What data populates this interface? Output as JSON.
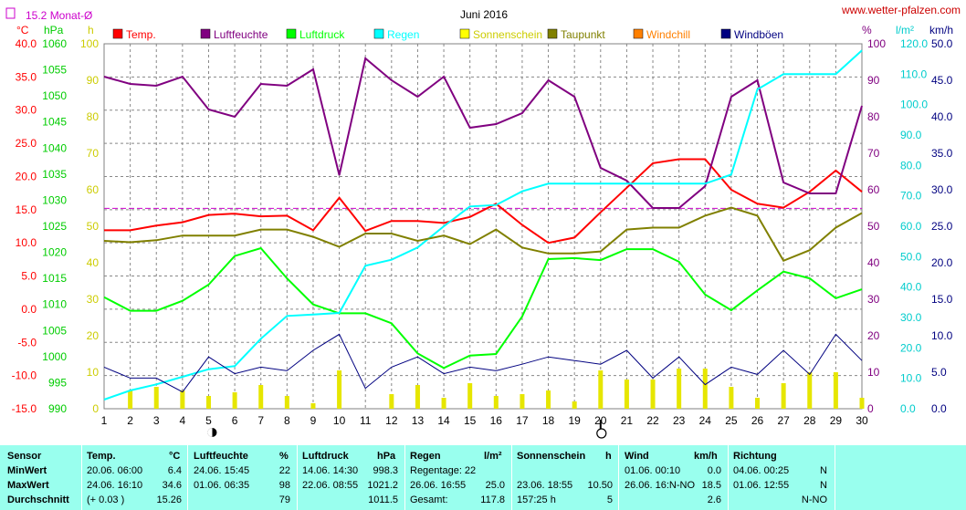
{
  "header": {
    "title": "Juni 2016",
    "website": "www.wetter-pfalzen.com",
    "monthly_avg": "15.2 Monat-Ø",
    "unit_celsius": "°C",
    "unit_hpa": "hPa",
    "unit_h": "h",
    "unit_pct": "%",
    "unit_lm2": "l/m²",
    "unit_kmh": "km/h"
  },
  "legend": [
    {
      "label": "Temp.",
      "color": "#ff0000"
    },
    {
      "label": "Luftfeuchte",
      "color": "#800080"
    },
    {
      "label": "Luftdruck",
      "color": "#00ff00"
    },
    {
      "label": "Regen",
      "color": "#00ffff"
    },
    {
      "label": "Sonnenschein",
      "color": "#ffff00"
    },
    {
      "label": "Taupunkt",
      "color": "#808000"
    },
    {
      "label": "Windchill",
      "color": "#ff8000"
    },
    {
      "label": "Windböen",
      "color": "#000080"
    }
  ],
  "chart_data": {
    "type": "line",
    "title": "Juni 2016",
    "x": [
      1,
      2,
      3,
      4,
      5,
      6,
      7,
      8,
      9,
      10,
      11,
      12,
      13,
      14,
      15,
      16,
      17,
      18,
      19,
      20,
      21,
      22,
      23,
      24,
      25,
      26,
      27,
      28,
      29,
      30
    ],
    "x_ticks": [
      "1",
      "2",
      "3",
      "4",
      "5",
      "6",
      "7",
      "8",
      "9",
      "10",
      "11",
      "12",
      "13",
      "14",
      "15",
      "16",
      "17",
      "18",
      "19",
      "20",
      "21",
      "22",
      "23",
      "24",
      "25",
      "26",
      "27",
      "28",
      "29",
      "30"
    ],
    "axes": {
      "temp_c": {
        "range": [
          -15,
          40
        ],
        "ticks": [
          "40.0",
          "35.0",
          "30.0",
          "25.0",
          "20.0",
          "15.0",
          "10.0",
          "5.0",
          "0.0",
          "-5.0",
          "-10.0",
          "-15.0"
        ]
      },
      "pressure_hpa": {
        "range": [
          990,
          1060
        ],
        "ticks": [
          "1060",
          "1055",
          "1050",
          "1045",
          "1040",
          "1035",
          "1030",
          "1025",
          "1020",
          "1015",
          "1010",
          "1005",
          "1000",
          "995",
          "990"
        ]
      },
      "sunshine_h": {
        "range": [
          0,
          100
        ],
        "ticks": [
          "100",
          "90",
          "80",
          "70",
          "60",
          "50",
          "40",
          "30",
          "20",
          "10",
          "0"
        ]
      },
      "humidity_pct": {
        "range": [
          0,
          100
        ],
        "ticks": [
          "100",
          "90",
          "80",
          "70",
          "60",
          "50",
          "40",
          "30",
          "20",
          "10",
          "0"
        ]
      },
      "rain_lm2": {
        "range": [
          0,
          120
        ],
        "ticks": [
          "120.0",
          "110.0",
          "100.0",
          "90.0",
          "80.0",
          "70.0",
          "60.0",
          "50.0",
          "40.0",
          "30.0",
          "20.0",
          "10.0",
          "0.0"
        ]
      },
      "wind_kmh": {
        "range": [
          0,
          50
        ],
        "ticks": [
          "50.0",
          "45.0",
          "40.0",
          "35.0",
          "30.0",
          "25.0",
          "20.0",
          "15.0",
          "10.0",
          "5.0",
          "0.0"
        ]
      }
    },
    "monthly_avg_temp": 15.2,
    "series": [
      {
        "name": "Temp.",
        "axis": "temp_c",
        "color": "#ff0000",
        "values": [
          11.9,
          11.9,
          12.6,
          13.1,
          14.2,
          14.4,
          14.0,
          14.1,
          11.9,
          16.8,
          11.8,
          13.3,
          13.3,
          13.0,
          13.9,
          15.9,
          12.7,
          10.0,
          10.8,
          14.6,
          18.3,
          22.0,
          22.6,
          22.6,
          18.0,
          15.9,
          15.3,
          17.7,
          20.9,
          17.7
        ]
      },
      {
        "name": "Luftfeuchte",
        "axis": "humidity_pct",
        "color": "#800080",
        "values": [
          91,
          89,
          88.5,
          91,
          82,
          80,
          89,
          88.5,
          93,
          64,
          96,
          90,
          85.5,
          91,
          77,
          78,
          81,
          90,
          85.5,
          66,
          62.5,
          55,
          55,
          61,
          85.5,
          90,
          62,
          59,
          59,
          83
        ]
      },
      {
        "name": "Luftdruck",
        "axis": "pressure_hpa",
        "color": "#00ff00",
        "values": [
          1011.4,
          1008.8,
          1008.8,
          1010.7,
          1013.8,
          1019.3,
          1020.8,
          1015.0,
          1010.0,
          1008.3,
          1008.3,
          1006.4,
          1000.6,
          997.8,
          1000.2,
          1000.5,
          1007.7,
          1018.7,
          1018.9,
          1018.5,
          1020.6,
          1020.6,
          1018.2,
          1011.9,
          1008.9,
          1012.7,
          1016.3,
          1015.0,
          1011.2,
          1012.9
        ]
      },
      {
        "name": "Regen",
        "axis": "rain_lm2",
        "color": "#00ffff",
        "values": [
          3,
          6,
          8,
          10.5,
          13,
          14,
          23,
          30.5,
          31,
          31.5,
          47,
          49,
          53,
          60,
          66.5,
          67,
          71.5,
          74,
          74,
          74,
          74,
          74,
          74,
          74,
          77,
          105,
          110,
          110,
          110,
          117.8
        ]
      },
      {
        "name": "Taupunkt",
        "axis": "temp_c",
        "color": "#808000",
        "values": [
          10.3,
          10.1,
          10.4,
          11.1,
          11.1,
          11.1,
          12.0,
          12.0,
          10.9,
          9.4,
          11.4,
          11.4,
          10.3,
          11.1,
          9.8,
          12.0,
          9.3,
          8.4,
          8.4,
          8.7,
          12.0,
          12.3,
          12.3,
          14.1,
          15.3,
          14.1,
          7.3,
          8.9,
          12.3,
          14.5
        ]
      },
      {
        "name": "Windböen",
        "axis": "wind_kmh",
        "color": "#000080",
        "values": [
          5.7,
          4.2,
          4.2,
          2.3,
          7.1,
          4.8,
          5.7,
          5.2,
          8.0,
          10.2,
          2.8,
          5.7,
          7.1,
          4.8,
          5.7,
          5.2,
          6.1,
          7.1,
          6.6,
          6.1,
          8.0,
          4.2,
          7.1,
          3.3,
          5.7,
          4.7,
          8.0,
          4.7,
          10.2,
          6.6
        ]
      },
      {
        "name": "Sonnenschein",
        "axis": "sunshine_h",
        "color": "#ffff00",
        "style": "bar",
        "values": [
          0,
          5,
          6,
          5,
          3.5,
          4.5,
          6.5,
          3.5,
          1.5,
          10.5,
          0,
          4,
          6.5,
          3,
          7,
          3.5,
          4,
          5,
          2,
          10.5,
          8,
          8,
          11,
          11,
          6,
          3,
          7,
          10,
          10,
          3
        ]
      }
    ],
    "markers": [
      {
        "type": "new-moon",
        "x": 5
      },
      {
        "type": "full-moon",
        "x": 20
      }
    ]
  },
  "stats": {
    "headers": {
      "sensor": "Sensor",
      "temp": "Temp.",
      "temp_unit": "°C",
      "hum": "Luftfeuchte",
      "hum_unit": "%",
      "press": "Luftdruck",
      "press_unit": "hPa",
      "rain": "Regen",
      "rain_unit": "l/m²",
      "sun": "Sonnenschein",
      "sun_unit": "h",
      "wind": "Wind",
      "wind_unit": "km/h",
      "dir": "Richtung"
    },
    "row_labels": [
      "MinWert",
      "MaxWert",
      "Durchschnitt"
    ],
    "temp": [
      [
        "20.06. 06:00",
        "6.4"
      ],
      [
        "24.06. 16:10",
        "34.6"
      ],
      [
        "(+ 0.03 )",
        "15.26"
      ]
    ],
    "hum": [
      [
        "24.06. 15:45",
        "22"
      ],
      [
        "01.06. 06:35",
        "98"
      ],
      [
        "",
        "79"
      ]
    ],
    "press": [
      [
        "14.06. 14:30",
        "998.3"
      ],
      [
        "22.06. 08:55",
        "1021.2"
      ],
      [
        "",
        "1011.5"
      ]
    ],
    "rain": [
      [
        "Regentage: 22",
        ""
      ],
      [
        "26.06. 16:55",
        "25.0"
      ],
      [
        "Gesamt:",
        "117.8"
      ]
    ],
    "sun": [
      [
        "23.06. 18:55",
        "10.50"
      ],
      [
        "157:25 h",
        "5"
      ]
    ],
    "wind": [
      [
        "01.06. 00:10",
        "0.0"
      ],
      [
        "26.06. 16:N-NO",
        "18.5"
      ],
      [
        "",
        "2.6"
      ]
    ],
    "dir": [
      [
        "04.06. 00:25",
        "N"
      ],
      [
        "01.06. 12:55",
        "N"
      ],
      [
        "",
        "N-NO"
      ]
    ]
  }
}
